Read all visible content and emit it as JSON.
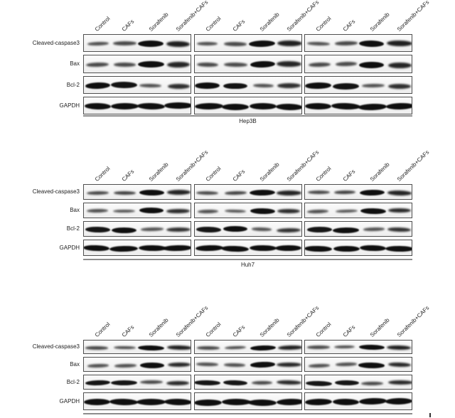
{
  "figure": {
    "protein_labels": [
      "Cleaved-caspase3",
      "Bax",
      "Bcl-2",
      "GAPDH"
    ],
    "treatment_labels": [
      "Control",
      "CAFs",
      "Sorafenib",
      "Sorafenib+CAFs"
    ],
    "replicate_groups_per_panel": 3,
    "lanes_per_group": 4,
    "panels": [
      {
        "cell_line": "Hep3B",
        "bands": {
          "Cleaved-caspase3": [
            0.45,
            0.5,
            1.0,
            0.85
          ],
          "Bax": [
            0.5,
            0.48,
            1.0,
            0.8
          ],
          "Bcl-2": [
            1.0,
            0.97,
            0.45,
            0.72
          ],
          "GAPDH": [
            1.0,
            1.0,
            1.0,
            1.0
          ]
        }
      },
      {
        "cell_line": "Huh7",
        "bands": {
          "Cleaved-caspase3": [
            0.5,
            0.55,
            1.0,
            0.82
          ],
          "Bax": [
            0.45,
            0.4,
            1.0,
            0.75
          ],
          "Bcl-2": [
            0.95,
            1.0,
            0.42,
            0.7
          ],
          "GAPDH": [
            1.0,
            1.0,
            1.0,
            1.0
          ]
        }
      },
      {
        "cell_line": "",
        "bands": {
          "Cleaved-caspase3": [
            0.5,
            0.48,
            1.0,
            0.85
          ],
          "Bax": [
            0.45,
            0.45,
            1.0,
            0.78
          ],
          "Bcl-2": [
            0.95,
            0.95,
            0.5,
            0.75
          ],
          "GAPDH": [
            1.0,
            1.0,
            1.0,
            1.0
          ]
        }
      }
    ],
    "colors": {
      "band": "#0f0f0f",
      "blot_background": "#f4f4f4",
      "blot_border": "#4e4e4e",
      "underline": "#8d8d8d",
      "text": "#222222",
      "page_background": "#ffffff"
    }
  }
}
